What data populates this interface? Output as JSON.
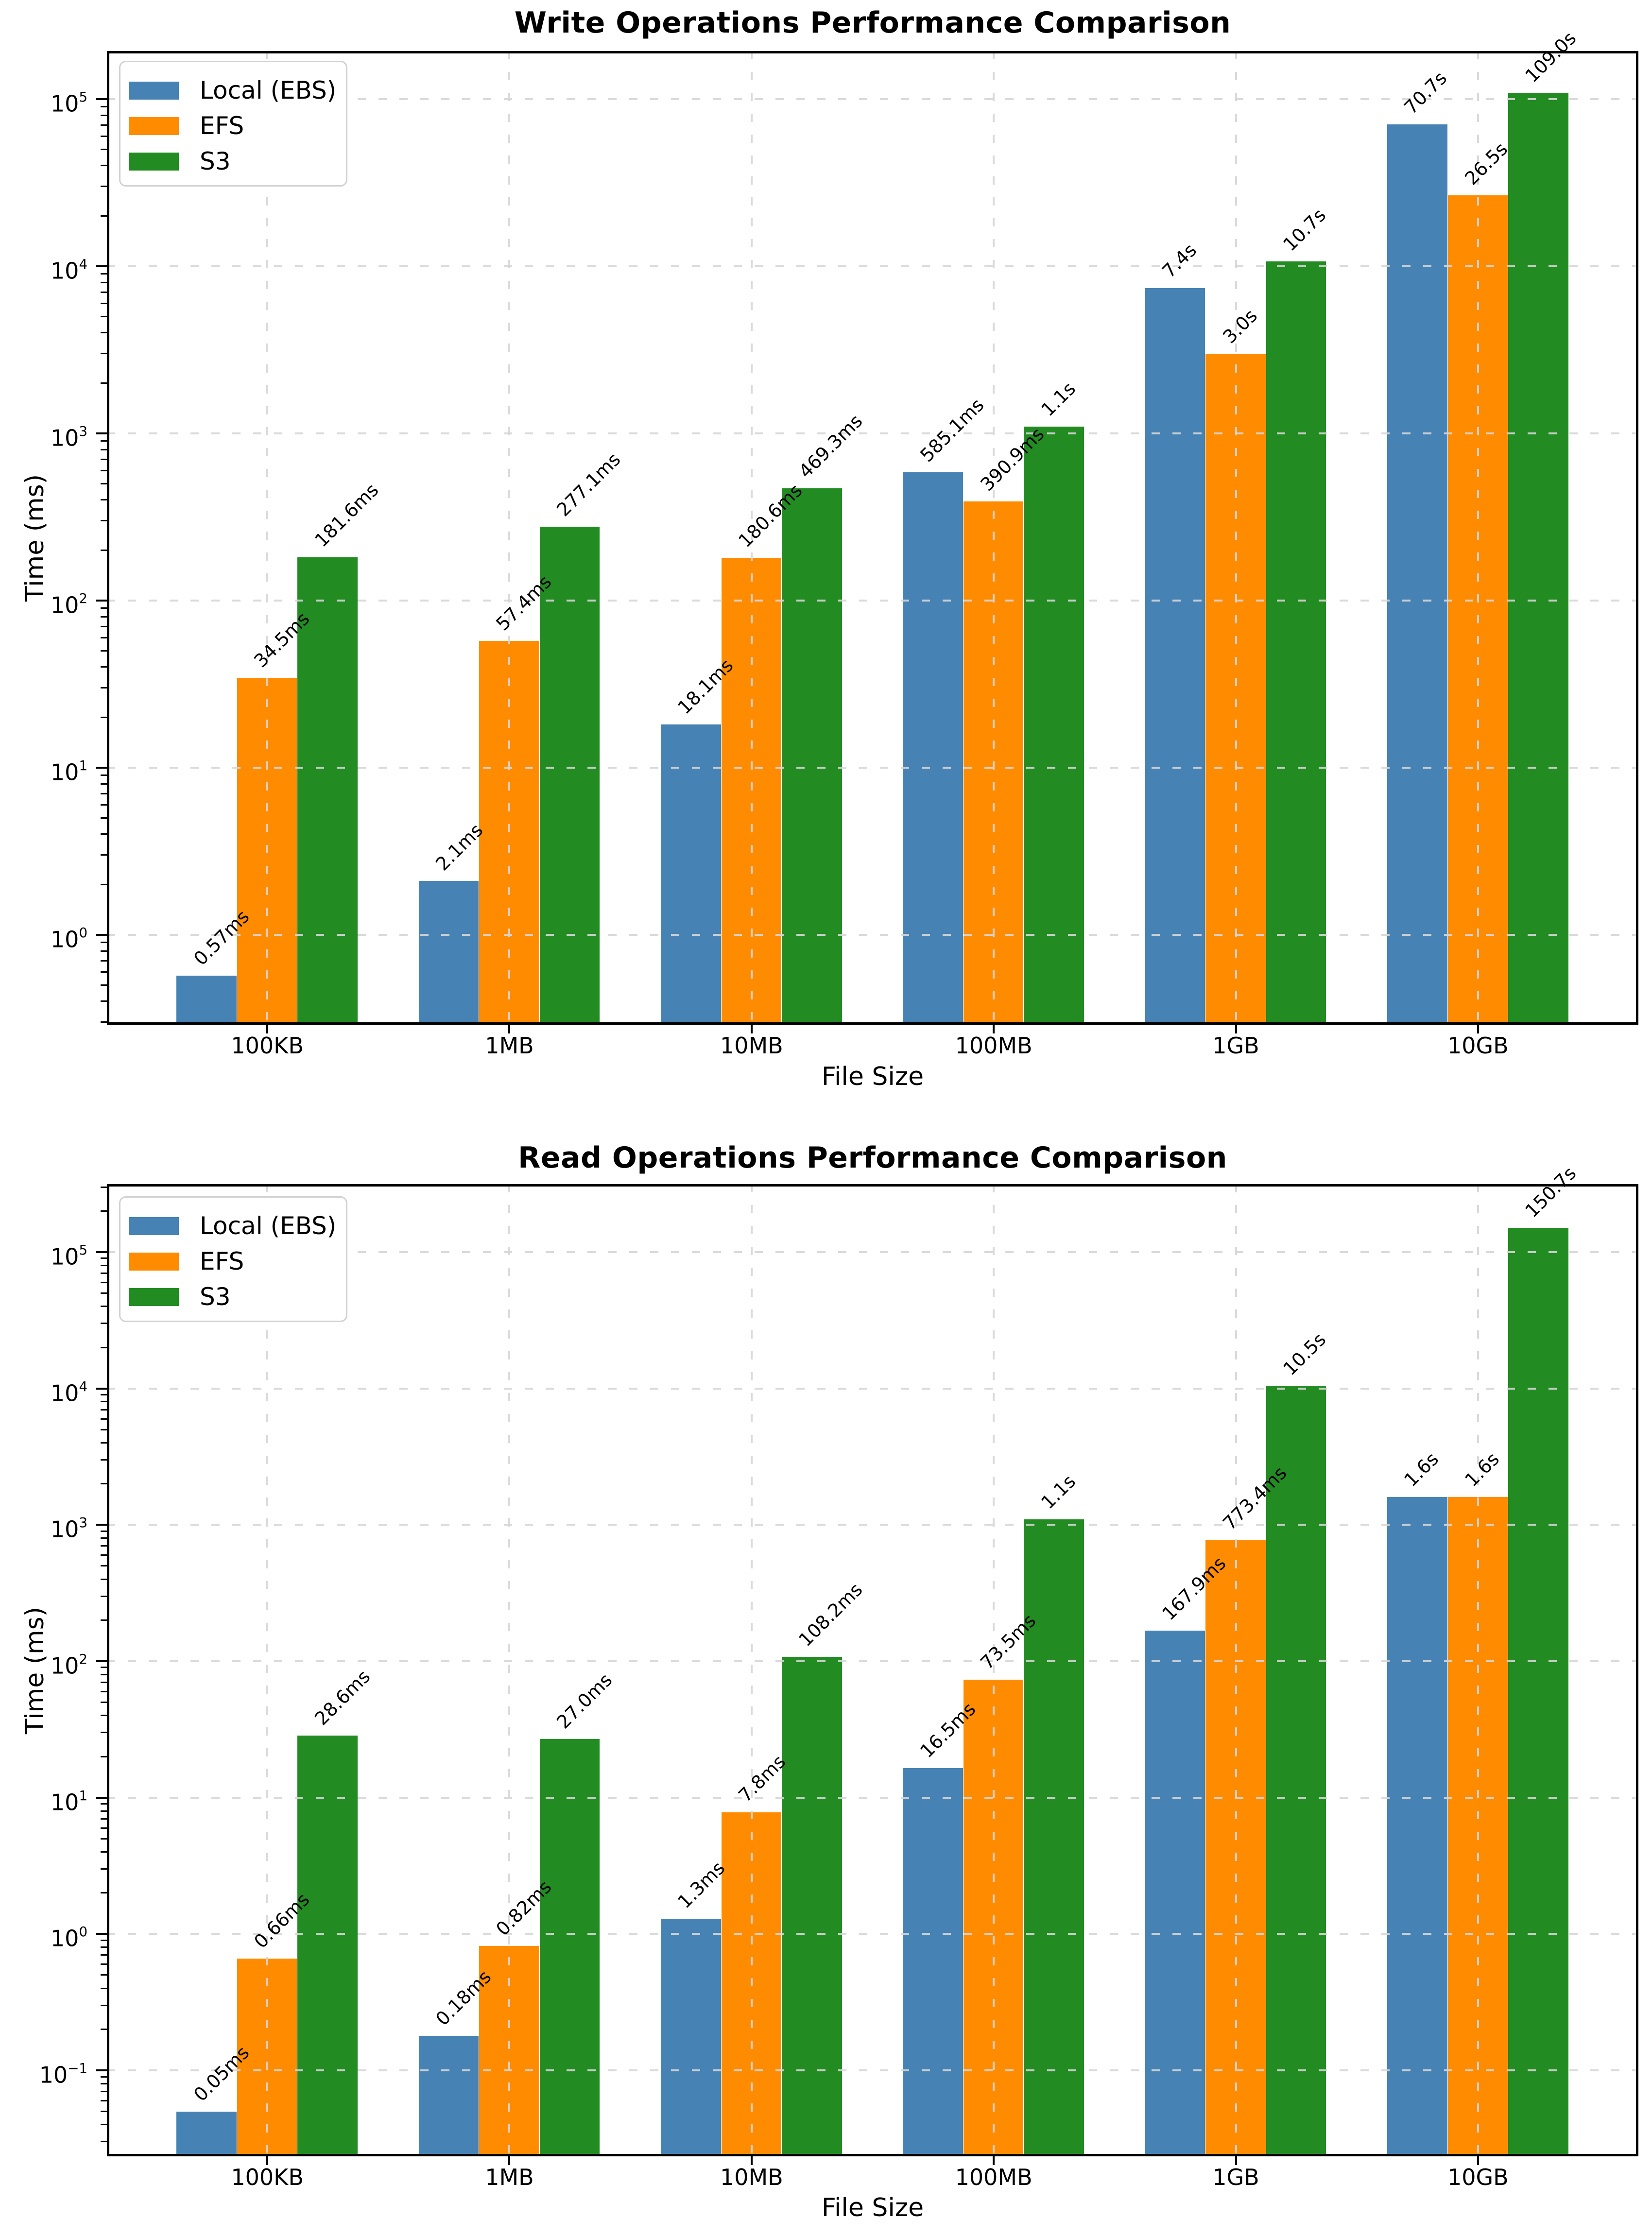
{
  "figure": {
    "background": "#ffffff",
    "grid_color": "#d6d6d6",
    "spine_color": "#000000",
    "legend_border_color": "#d2d2d2"
  },
  "chart_data": [
    {
      "type": "bar",
      "title": "Write Operations Performance Comparison",
      "xlabel": "File Size",
      "ylabel": "Time (ms)",
      "yscale": "log",
      "grid": true,
      "legend_position": "upper left",
      "categories": [
        "100KB",
        "1MB",
        "10MB",
        "100MB",
        "1GB",
        "10GB"
      ],
      "ytick_exponents": [
        0,
        1,
        2,
        3,
        4,
        5
      ],
      "ylim_log10": [
        -0.538,
        5.288
      ],
      "series": [
        {
          "name": "Local (EBS)",
          "color": "#4682b4",
          "values_ms": [
            0.57,
            2.1,
            18.1,
            585.1,
            7400,
            70700
          ],
          "labels": [
            "0.57ms",
            "2.1ms",
            "18.1ms",
            "585.1ms",
            "7.4s",
            "70.7s"
          ]
        },
        {
          "name": "EFS",
          "color": "#ff8c00",
          "values_ms": [
            34.5,
            57.4,
            180.6,
            390.9,
            3000,
            26500
          ],
          "labels": [
            "34.5ms",
            "57.4ms",
            "180.6ms",
            "390.9ms",
            "3.0s",
            "26.5s"
          ]
        },
        {
          "name": "S3",
          "color": "#228b22",
          "values_ms": [
            181.6,
            277.1,
            469.3,
            1100,
            10700,
            109000
          ],
          "labels": [
            "181.6ms",
            "277.1ms",
            "469.3ms",
            "1.1s",
            "10.7s",
            "109.0s"
          ]
        }
      ]
    },
    {
      "type": "bar",
      "title": "Read Operations Performance Comparison",
      "xlabel": "File Size",
      "ylabel": "Time (ms)",
      "yscale": "log",
      "grid": true,
      "legend_position": "upper left",
      "categories": [
        "100KB",
        "1MB",
        "10MB",
        "100MB",
        "1GB",
        "10GB"
      ],
      "ytick_exponents": [
        -1,
        0,
        1,
        2,
        3,
        4,
        5
      ],
      "ylim_log10": [
        -1.63,
        5.499
      ],
      "series": [
        {
          "name": "Local (EBS)",
          "color": "#4682b4",
          "values_ms": [
            0.05,
            0.18,
            1.3,
            16.5,
            167.9,
            1600
          ],
          "labels": [
            "0.05ms",
            "0.18ms",
            "1.3ms",
            "16.5ms",
            "167.9ms",
            "1.6s"
          ]
        },
        {
          "name": "EFS",
          "color": "#ff8c00",
          "values_ms": [
            0.66,
            0.82,
            7.8,
            73.5,
            773.4,
            1600
          ],
          "labels": [
            "0.66ms",
            "0.82ms",
            "7.8ms",
            "73.5ms",
            "773.4ms",
            "1.6s"
          ]
        },
        {
          "name": "S3",
          "color": "#228b22",
          "values_ms": [
            28.6,
            27.0,
            108.2,
            1100,
            10500,
            150700
          ],
          "labels": [
            "28.6ms",
            "27.0ms",
            "108.2ms",
            "1.1s",
            "10.5s",
            "150.7s"
          ]
        }
      ]
    }
  ]
}
